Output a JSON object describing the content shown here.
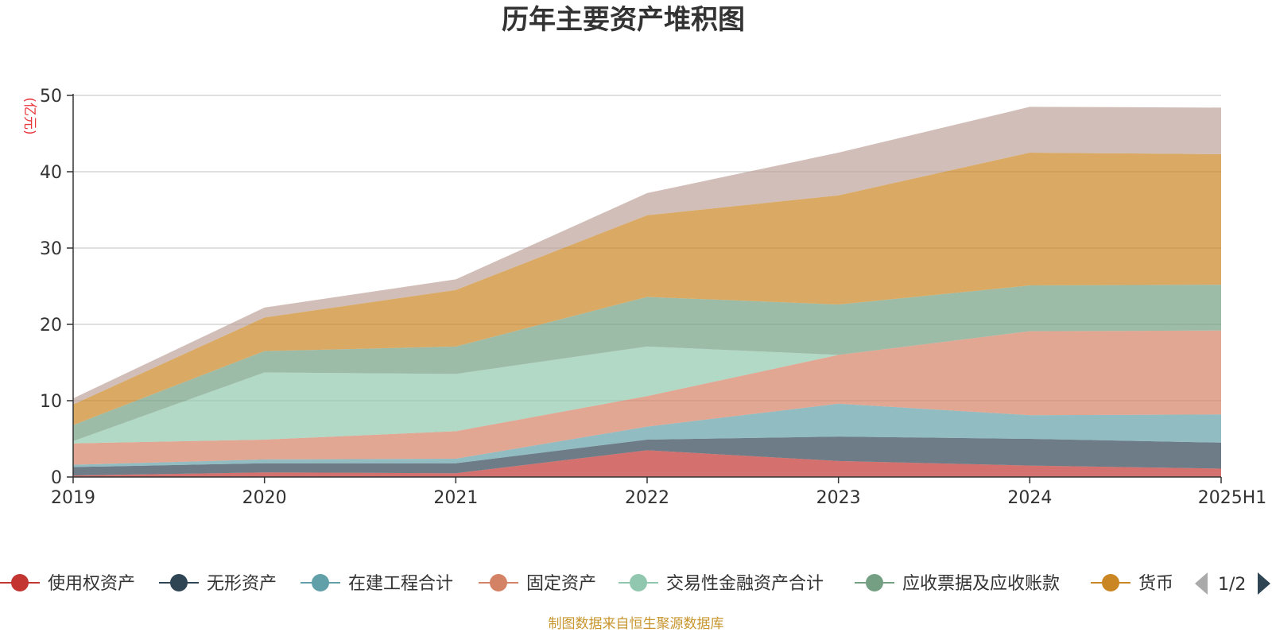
{
  "chart_data": {
    "type": "area",
    "stacked": true,
    "title": "历年主要资产堆积图",
    "unit_label": "(亿元)",
    "categories": [
      "2019",
      "2020",
      "2021",
      "2022",
      "2023",
      "2024",
      "2025H1"
    ],
    "y_ticks": [
      "0",
      "10",
      "20",
      "30",
      "40",
      "50"
    ],
    "ylim": [
      0,
      50
    ],
    "grid": true,
    "legend_position": "bottom",
    "series": [
      {
        "name": "使用权资产",
        "color": "#c23531",
        "values": [
          0.2,
          0.6,
          0.5,
          3.5,
          2.1,
          1.5,
          1.1
        ]
      },
      {
        "name": "无形资产",
        "color": "#2f4554",
        "values": [
          1.1,
          1.2,
          1.3,
          1.4,
          3.2,
          3.5,
          3.4
        ]
      },
      {
        "name": "在建工程合计",
        "color": "#61a0a8",
        "values": [
          0.3,
          0.5,
          0.6,
          1.7,
          4.3,
          3.1,
          3.7
        ]
      },
      {
        "name": "固定资产",
        "color": "#d48265",
        "values": [
          2.8,
          2.6,
          3.6,
          4.0,
          6.4,
          11.0,
          11.0
        ]
      },
      {
        "name": "交易性金融资产合计",
        "color": "#91c7ae",
        "values": [
          0.3,
          8.8,
          7.5,
          6.5,
          0.0,
          0.0,
          0.0
        ]
      },
      {
        "name": "应收票据及应收账款",
        "color": "#749f83",
        "values": [
          2.1,
          2.8,
          3.6,
          6.5,
          6.6,
          6.0,
          6.0
        ]
      },
      {
        "name": "货币",
        "color": "#ca8622",
        "values": [
          2.7,
          4.4,
          7.4,
          10.7,
          14.3,
          17.4,
          17.1
        ]
      },
      {
        "name": "",
        "color": "#bda29a",
        "values": [
          0.8,
          1.3,
          1.4,
          2.9,
          5.6,
          6.0,
          6.1
        ]
      }
    ],
    "legend_pager": "1/2"
  },
  "footnote": "制图数据来自恒生聚源数据库"
}
